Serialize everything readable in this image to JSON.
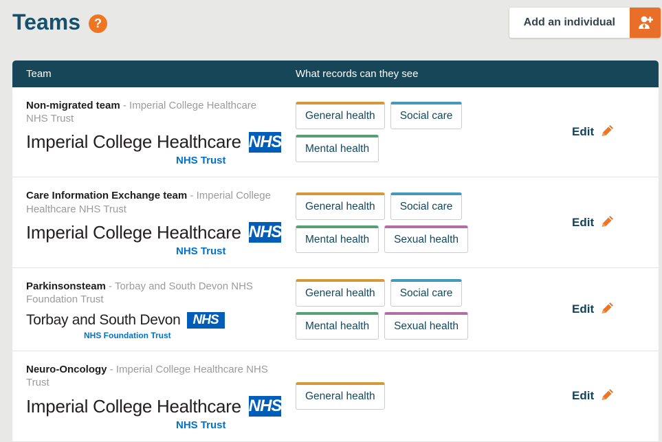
{
  "header": {
    "title": "Teams",
    "help_glyph": "?",
    "add_individual_label": "Add an individual"
  },
  "table": {
    "columns": {
      "team": "Team",
      "records": "What records can they see"
    },
    "separator": "-",
    "edit_label": "Edit",
    "rows": [
      {
        "name": "Non-migrated team",
        "org": "Imperial College Healthcare NHS Trust",
        "logo": {
          "style": "imperial",
          "text": "Imperial College Healthcare",
          "nhs": "NHS",
          "sub": "NHS Trust"
        },
        "tags": [
          {
            "label": "General health",
            "color": "#d49a39"
          },
          {
            "label": "Social care",
            "color": "#4399ba"
          },
          {
            "label": "Mental health",
            "color": "#57a075"
          }
        ],
        "edit": "Edit"
      },
      {
        "name": "Care Information Exchange team",
        "org": "Imperial College Healthcare NHS Trust",
        "logo": {
          "style": "imperial",
          "text": "Imperial College Healthcare",
          "nhs": "NHS",
          "sub": "NHS Trust"
        },
        "tags": [
          {
            "label": "General health",
            "color": "#d49a39"
          },
          {
            "label": "Social care",
            "color": "#4399ba"
          },
          {
            "label": "Mental health",
            "color": "#57a075"
          },
          {
            "label": "Sexual health",
            "color": "#af6fa5"
          }
        ],
        "edit": "Edit"
      },
      {
        "name": "Parkinsonsteam",
        "org": "Torbay and South Devon NHS Foundation Trust",
        "logo": {
          "style": "torbay",
          "text": "Torbay and South Devon",
          "nhs": "NHS",
          "sub": "NHS Foundation Trust"
        },
        "tags": [
          {
            "label": "General health",
            "color": "#d49a39"
          },
          {
            "label": "Social care",
            "color": "#4399ba"
          },
          {
            "label": "Mental health",
            "color": "#57a075"
          },
          {
            "label": "Sexual health",
            "color": "#af6fa5"
          }
        ],
        "edit": "Edit"
      },
      {
        "name": "Neuro-Oncology",
        "org": "Imperial College Healthcare NHS Trust",
        "logo": {
          "style": "imperial",
          "text": "Imperial College Healthcare",
          "nhs": "NHS",
          "sub": "NHS Trust"
        },
        "tags": [
          {
            "label": "General health",
            "color": "#d49a39"
          }
        ],
        "edit": "Edit"
      }
    ]
  },
  "colors": {
    "accent_orange": "#ee7623",
    "table_header_teal": "#164658",
    "nhs_blue": "#005eb8",
    "nhs_trust_text_blue": "#0072ce",
    "tag_general_health": "#d49a39",
    "tag_social_care": "#4399ba",
    "tag_mental_health": "#57a075",
    "tag_sexual_health": "#af6fa5"
  }
}
